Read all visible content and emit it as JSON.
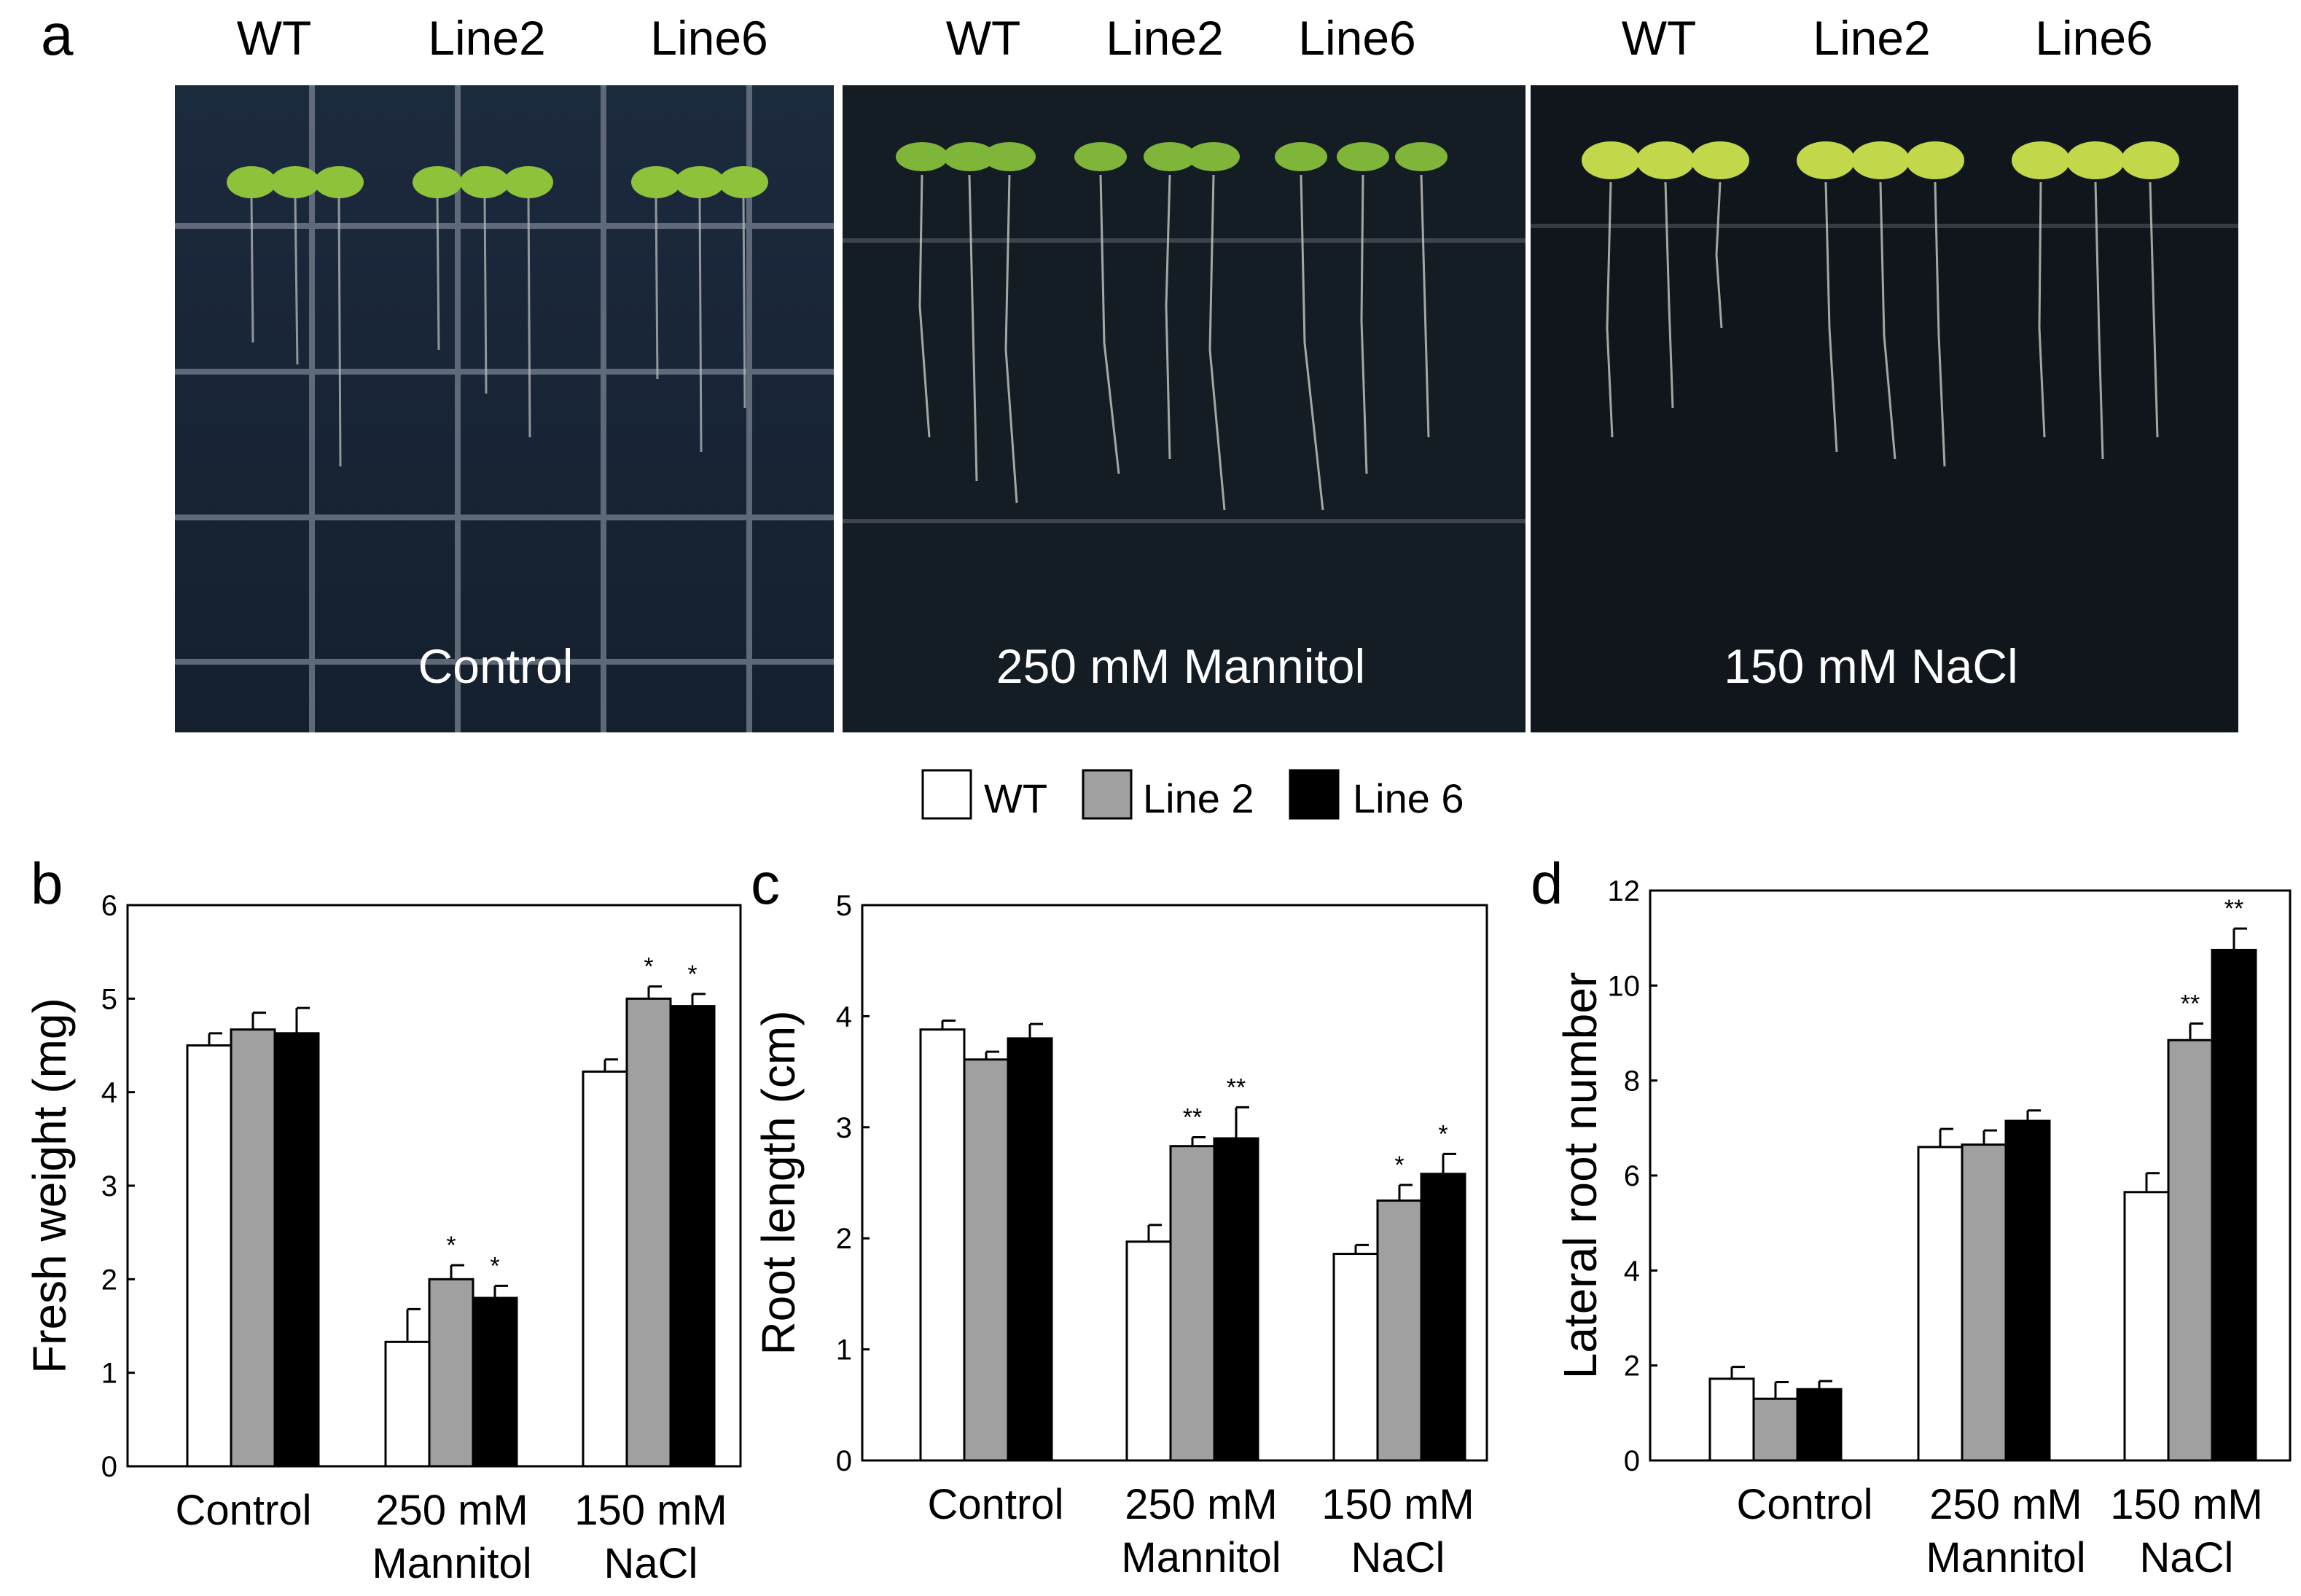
{
  "panel_a": {
    "letter": "a",
    "plates": [
      {
        "condition": "Control",
        "genotypes": [
          "WT",
          "Line2",
          "Line6"
        ]
      },
      {
        "condition": "250 mM Mannitol",
        "genotypes": [
          "WT",
          "Line2",
          "Line6"
        ]
      },
      {
        "condition": "150 mM NaCl",
        "genotypes": [
          "WT",
          "Line2",
          "Line6"
        ]
      }
    ]
  },
  "legend": [
    {
      "label": "WT",
      "color": "#ffffff"
    },
    {
      "label": "Line 2",
      "color": "#a0a0a0"
    },
    {
      "label": "Line 6",
      "color": "#000000"
    }
  ],
  "chart_data": [
    {
      "type": "bar",
      "letter": "b",
      "ylabel": "Fresh weight (mg)",
      "ylim": [
        0,
        6
      ],
      "yticks": [
        0,
        1,
        2,
        3,
        4,
        5,
        6
      ],
      "categories": [
        [
          "Control"
        ],
        [
          "250 mM",
          "Mannitol"
        ],
        [
          "150 mM",
          "NaCl"
        ]
      ],
      "series": [
        {
          "name": "WT",
          "values": [
            4.5,
            1.33,
            4.22
          ],
          "errors": [
            0.13,
            0.35,
            0.13
          ],
          "sig": [
            "",
            "",
            ""
          ]
        },
        {
          "name": "Line 2",
          "values": [
            4.67,
            2.0,
            5.0
          ],
          "errors": [
            0.18,
            0.15,
            0.13
          ],
          "sig": [
            "",
            "*",
            "*"
          ]
        },
        {
          "name": "Line 6",
          "values": [
            4.63,
            1.8,
            4.92
          ],
          "errors": [
            0.27,
            0.13,
            0.13
          ],
          "sig": [
            "",
            "*",
            "*"
          ]
        }
      ]
    },
    {
      "type": "bar",
      "letter": "c",
      "ylabel": "Root  length (cm)",
      "ylim": [
        0,
        5
      ],
      "yticks": [
        0,
        1,
        2,
        3,
        4,
        5
      ],
      "categories": [
        [
          "Control"
        ],
        [
          "250 mM",
          "Mannitol"
        ],
        [
          "150 mM",
          "NaCl"
        ]
      ],
      "series": [
        {
          "name": "WT",
          "values": [
            3.88,
            1.97,
            1.86
          ],
          "errors": [
            0.08,
            0.15,
            0.08
          ],
          "sig": [
            "",
            "",
            ""
          ]
        },
        {
          "name": "Line 2",
          "values": [
            3.61,
            2.83,
            2.34
          ],
          "errors": [
            0.07,
            0.08,
            0.14
          ],
          "sig": [
            "",
            "**",
            "*"
          ]
        },
        {
          "name": "Line 6",
          "values": [
            3.8,
            2.9,
            2.58
          ],
          "errors": [
            0.13,
            0.28,
            0.18
          ],
          "sig": [
            "",
            "**",
            "*"
          ]
        }
      ]
    },
    {
      "type": "bar",
      "letter": "d",
      "ylabel": "Lateral root number",
      "ylim": [
        0,
        12
      ],
      "yticks": [
        0,
        2,
        4,
        6,
        8,
        10,
        12
      ],
      "categories": [
        [
          "Control"
        ],
        [
          "250 mM",
          "Mannitol"
        ],
        [
          "150 mM",
          "NaCl"
        ]
      ],
      "series": [
        {
          "name": "WT",
          "values": [
            1.72,
            6.6,
            5.65
          ],
          "errors": [
            0.25,
            0.38,
            0.4
          ],
          "sig": [
            "",
            "",
            ""
          ]
        },
        {
          "name": "Line 2",
          "values": [
            1.3,
            6.65,
            8.85
          ],
          "errors": [
            0.35,
            0.3,
            0.35
          ],
          "sig": [
            "",
            "",
            "**"
          ]
        },
        {
          "name": "Line 6",
          "values": [
            1.5,
            7.15,
            10.75
          ],
          "errors": [
            0.17,
            0.22,
            0.45
          ],
          "sig": [
            "",
            "",
            "**"
          ]
        }
      ]
    }
  ]
}
